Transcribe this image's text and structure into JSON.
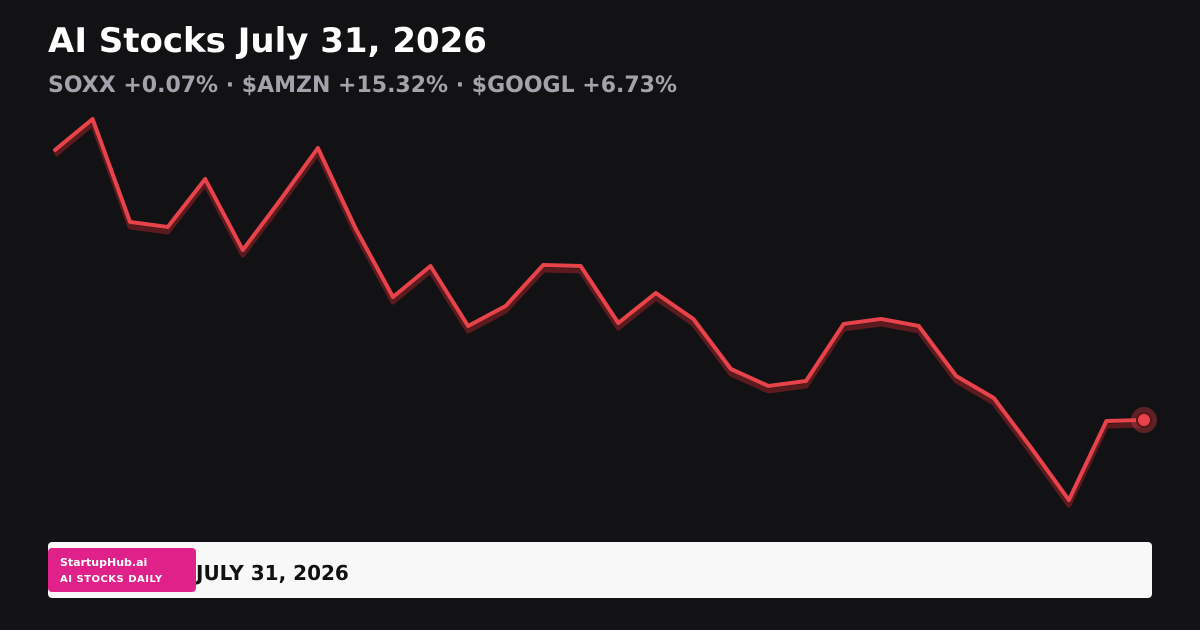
{
  "title": "AI Stocks July 31, 2026",
  "subtitle": "SOXX +0.07% · $AMZN +15.32% · $GOOGL +6.73%",
  "chart_data": {
    "type": "line",
    "color": "#e8434a",
    "values": [
      350,
      381,
      278,
      273,
      321,
      250,
      300,
      352,
      272,
      203,
      234,
      174,
      194,
      235,
      234,
      177,
      207,
      181,
      131,
      114,
      119,
      176,
      181,
      174,
      124,
      102,
      52,
      0,
      79,
      80
    ],
    "ylim": [
      0,
      381
    ]
  },
  "footer": {
    "brand": "StartupHub.ai",
    "tagline": "AI STOCKS DAILY",
    "date": "JULY 31, 2026"
  }
}
